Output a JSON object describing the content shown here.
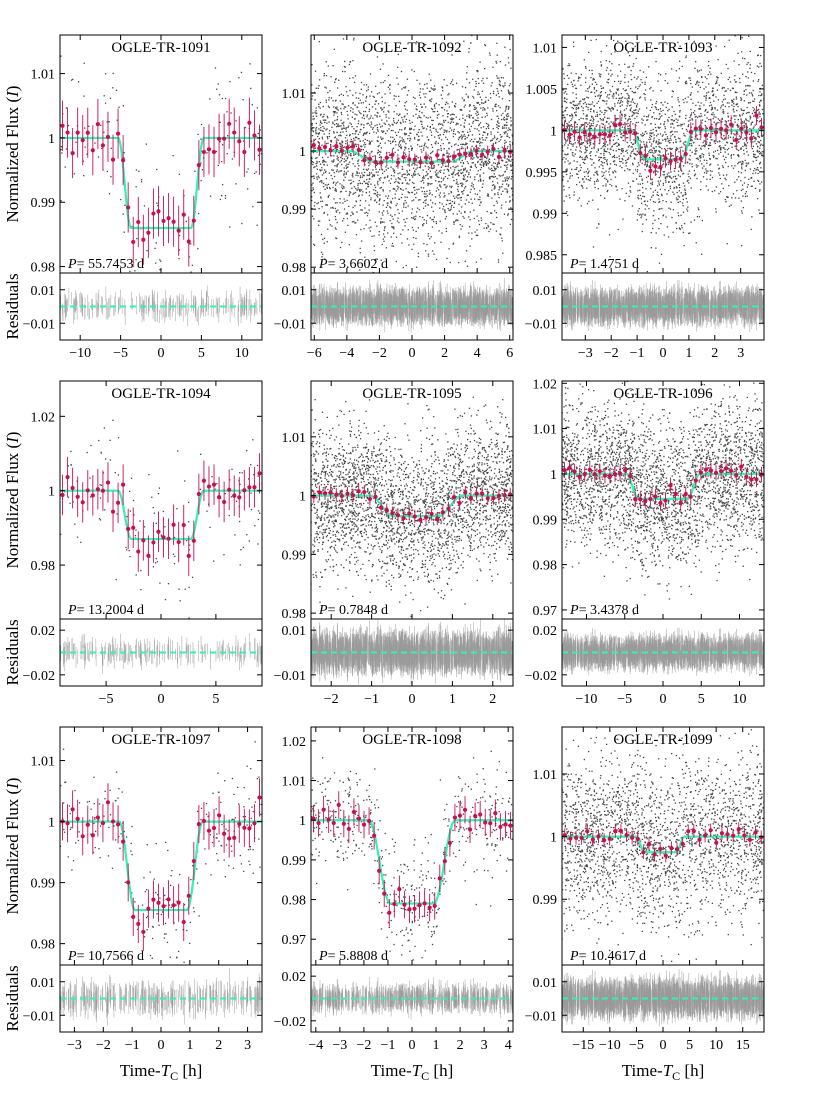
{
  "figure": {
    "ylabel_flux_prefix": "Normalized Flux (",
    "ylabel_flux_var": "I",
    "ylabel_flux_suffix": ")",
    "ylabel_residuals": "Residuals",
    "xlabel_prefix": "Time-",
    "xlabel_var": "T",
    "xlabel_sub": "C",
    "xlabel_suffix": " [h]",
    "period_var": "P",
    "period_eq": "= ",
    "period_unit": " d"
  },
  "colors": {
    "model": "#2ef5b0",
    "binned": "#c8104f",
    "raw": "#444444",
    "residual": "#9a9a9a",
    "frame": "#000000"
  },
  "chart_data": [
    {
      "type": "scatter",
      "title": "OGLE-TR-1091",
      "period": "55.7453",
      "xlim": [
        -12.5,
        12.5
      ],
      "xticks": [
        -10,
        -5,
        0,
        5,
        10
      ],
      "xtick_labels": [
        "−10",
        "−5",
        "0",
        "5",
        "10"
      ],
      "ylim": [
        0.979,
        1.016
      ],
      "yticks": [
        0.98,
        0.99,
        1.0,
        1.01
      ],
      "ytick_labels": [
        "0.98",
        "0.99",
        "1",
        "1.01"
      ],
      "res_ylim": [
        -0.02,
        0.02
      ],
      "res_yticks": [
        -0.01,
        0.01
      ],
      "res_ytick_labels": [
        "−0.01",
        "0.01"
      ],
      "depth": 0.014,
      "T14": 10.6,
      "T12": 1.6,
      "center": 0,
      "n_raw": 170,
      "noise_raw": 0.006,
      "n_bins": 40,
      "bin_noise": 0.002,
      "res_noise": 0.004
    },
    {
      "type": "scatter",
      "title": "OGLE-TR-1092",
      "period": "3.6602",
      "xlim": [
        -6.2,
        6.2
      ],
      "xticks": [
        -6,
        -4,
        -2,
        0,
        2,
        4,
        6
      ],
      "xtick_labels": [
        "−6",
        "−4",
        "−2",
        "0",
        "2",
        "4",
        "6"
      ],
      "ylim": [
        0.979,
        1.02
      ],
      "yticks": [
        0.98,
        0.99,
        1.0,
        1.01
      ],
      "ytick_labels": [
        "0.98",
        "0.99",
        "1",
        "1.01"
      ],
      "res_ylim": [
        -0.02,
        0.02
      ],
      "res_yticks": [
        -0.01,
        0.01
      ],
      "res_ytick_labels": [
        "−0.01",
        "0.01"
      ],
      "depth": 0.0018,
      "T14": 7.6,
      "T12": 1.4,
      "center": 0,
      "n_raw": 2600,
      "noise_raw": 0.0075,
      "n_bins": 36,
      "bin_noise": 0.0006,
      "res_noise": 0.005
    },
    {
      "type": "scatter",
      "title": "OGLE-TR-1093",
      "period": "1.4751",
      "xlim": [
        -3.9,
        3.9
      ],
      "xticks": [
        -3,
        -2,
        -1,
        0,
        1,
        2,
        3
      ],
      "xtick_labels": [
        "−3",
        "−2",
        "−1",
        "0",
        "1",
        "2",
        "3"
      ],
      "ylim": [
        0.9828,
        1.0115
      ],
      "yticks": [
        0.985,
        0.99,
        0.995,
        1.0,
        1.005,
        1.01
      ],
      "ytick_labels": [
        "0.985",
        "0.99",
        "0.995",
        "1",
        "1.005",
        "1.01"
      ],
      "res_ylim": [
        -0.02,
        0.02
      ],
      "res_yticks": [
        -0.01,
        0.01
      ],
      "res_ytick_labels": [
        "−0.01",
        "0.01"
      ],
      "depth": 0.0035,
      "T14": 2.4,
      "T12": 0.5,
      "center": 0,
      "n_raw": 2400,
      "noise_raw": 0.0045,
      "n_bins": 40,
      "bin_noise": 0.0006,
      "res_noise": 0.005
    },
    {
      "type": "scatter",
      "title": "OGLE-TR-1094",
      "period": "13.2004",
      "xlim": [
        -9.2,
        9.2
      ],
      "xticks": [
        -5,
        0,
        5
      ],
      "xtick_labels": [
        "−5",
        "0",
        "5"
      ],
      "ylim": [
        0.9655,
        1.0295
      ],
      "yticks": [
        0.98,
        1.0,
        1.02
      ],
      "ytick_labels": [
        "0.98",
        "1",
        "1.02"
      ],
      "res_ylim": [
        -0.03,
        0.03
      ],
      "res_yticks": [
        -0.02,
        0.02
      ],
      "res_ytick_labels": [
        "−0.02",
        "0.02"
      ],
      "depth": 0.013,
      "T14": 7.8,
      "T12": 1.2,
      "center": 0,
      "n_raw": 150,
      "noise_raw": 0.009,
      "n_bins": 40,
      "bin_noise": 0.003,
      "res_noise": 0.006
    },
    {
      "type": "scatter",
      "title": "OGLE-TR-1095",
      "period": "0.7848",
      "xlim": [
        -2.5,
        2.5
      ],
      "xticks": [
        -2,
        -1,
        0,
        1,
        2
      ],
      "xtick_labels": [
        "−2",
        "−1",
        "0",
        "1",
        "2"
      ],
      "ylim": [
        0.979,
        1.0195
      ],
      "yticks": [
        0.98,
        0.99,
        1.0,
        1.01
      ],
      "ytick_labels": [
        "0.98",
        "0.99",
        "1",
        "1.01"
      ],
      "res_ylim": [
        -0.015,
        0.015
      ],
      "res_yticks": [
        -0.01,
        0.01
      ],
      "res_ytick_labels": [
        "−0.01",
        "0.01"
      ],
      "depth": 0.0035,
      "T14": 2.3,
      "T12": 0.6,
      "center": 0.1,
      "n_raw": 2800,
      "noise_raw": 0.006,
      "n_bins": 36,
      "bin_noise": 0.0006,
      "res_noise": 0.0045
    },
    {
      "type": "scatter",
      "title": "OGLE-TR-1096",
      "period": "3.4378",
      "xlim": [
        -13.2,
        13.2
      ],
      "xticks": [
        -10,
        -5,
        0,
        5,
        10
      ],
      "xtick_labels": [
        "−10",
        "−5",
        "0",
        "5",
        "10"
      ],
      "ylim": [
        0.968,
        1.0205
      ],
      "yticks": [
        0.97,
        0.98,
        0.99,
        1.0,
        1.01,
        1.02
      ],
      "ytick_labels": [
        "0.97",
        "0.98",
        "0.99",
        "1",
        "1.01",
        "1.02"
      ],
      "res_ylim": [
        -0.03,
        0.03
      ],
      "res_yticks": [
        -0.02,
        0.02
      ],
      "res_ytick_labels": [
        "−0.02",
        "0.02"
      ],
      "depth": 0.0055,
      "T14": 9.6,
      "T12": 1.6,
      "center": 0,
      "n_raw": 3000,
      "noise_raw": 0.008,
      "n_bins": 40,
      "bin_noise": 0.0009,
      "res_noise": 0.007
    },
    {
      "type": "scatter",
      "title": "OGLE-TR-1097",
      "period": "10.7566",
      "xlim": [
        -3.5,
        3.5
      ],
      "xticks": [
        -3,
        -2,
        -1,
        0,
        1,
        2,
        3
      ],
      "xtick_labels": [
        "−3",
        "−2",
        "−1",
        "0",
        "1",
        "2",
        "3"
      ],
      "ylim": [
        0.9765,
        1.0155
      ],
      "yticks": [
        0.98,
        0.99,
        1.0,
        1.01
      ],
      "ytick_labels": [
        "0.98",
        "0.99",
        "1",
        "1.01"
      ],
      "res_ylim": [
        -0.02,
        0.02
      ],
      "res_yticks": [
        -0.01,
        0.01
      ],
      "res_ytick_labels": [
        "−0.01",
        "0.01"
      ],
      "depth": 0.0145,
      "T14": 2.9,
      "T12": 0.55,
      "center": 0,
      "n_raw": 240,
      "noise_raw": 0.005,
      "n_bins": 40,
      "bin_noise": 0.0015,
      "res_noise": 0.005
    },
    {
      "type": "scatter",
      "title": "OGLE-TR-1098",
      "period": "5.8808",
      "xlim": [
        -4.2,
        4.2
      ],
      "xticks": [
        -4,
        -3,
        -2,
        -1,
        0,
        1,
        2,
        3,
        4
      ],
      "xtick_labels": [
        "−4",
        "−3",
        "−2",
        "−1",
        "0",
        "1",
        "2",
        "3",
        "4"
      ],
      "ylim": [
        0.9635,
        1.0235
      ],
      "yticks": [
        0.97,
        0.98,
        0.99,
        1.0,
        1.01,
        1.02
      ],
      "ytick_labels": [
        "0.97",
        "0.98",
        "0.99",
        "1",
        "1.01",
        "1.02"
      ],
      "res_ylim": [
        -0.03,
        0.03
      ],
      "res_yticks": [
        -0.02,
        0.02
      ],
      "res_ytick_labels": [
        "−0.02",
        "0.02"
      ],
      "depth": 0.021,
      "T14": 3.6,
      "T12": 0.9,
      "center": 0,
      "n_raw": 520,
      "noise_raw": 0.007,
      "n_bins": 40,
      "bin_noise": 0.0015,
      "res_noise": 0.006
    },
    {
      "type": "scatter",
      "title": "OGLE-TR-1099",
      "period": "10.4617",
      "xlim": [
        -19,
        19
      ],
      "xticks": [
        -15,
        -10,
        -5,
        0,
        5,
        10,
        15
      ],
      "xtick_labels": [
        "−15",
        "−10",
        "−5",
        "0",
        "5",
        "10",
        "15"
      ],
      "ylim": [
        0.9795,
        1.0175
      ],
      "yticks": [
        0.99,
        1.0,
        1.01
      ],
      "ytick_labels": [
        "0.99",
        "1",
        "1.01"
      ],
      "res_ylim": [
        -0.02,
        0.02
      ],
      "res_yticks": [
        -0.01,
        0.01
      ],
      "res_ytick_labels": [
        "−0.01",
        "0.01"
      ],
      "depth": 0.0025,
      "T14": 9,
      "T12": 1.5,
      "center": -0.5,
      "n_raw": 2300,
      "noise_raw": 0.0065,
      "n_bins": 36,
      "bin_noise": 0.0006,
      "res_noise": 0.0055
    }
  ]
}
